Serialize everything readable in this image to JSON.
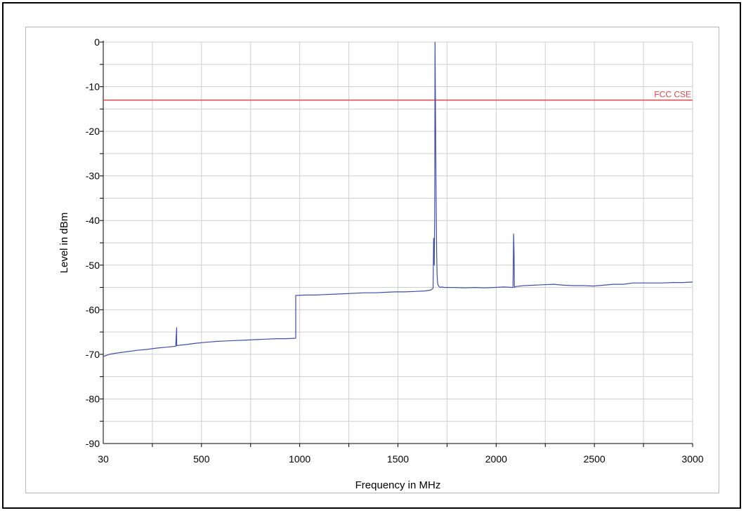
{
  "chart_data": {
    "type": "line",
    "title": "",
    "xlabel": "Frequency in MHz",
    "ylabel": "Level in dBm",
    "xlim": [
      30,
      3000
    ],
    "ylim": [
      -90,
      0
    ],
    "x_tick_labels": [
      "30",
      "500",
      "1000",
      "1500",
      "2000",
      "2500",
      "3000"
    ],
    "y_tick_labels": [
      "0",
      "-10",
      "-20",
      "-30",
      "-40",
      "-50",
      "-60",
      "-70",
      "-80",
      "-90"
    ],
    "grid": true,
    "limit_line": {
      "name": "FCC CSE",
      "value": -13,
      "color": "#e8434a"
    },
    "series": [
      {
        "color": "#3f4fa8",
        "x": [
          30,
          60,
          100,
          150,
          200,
          250,
          300,
          350,
          395,
          400,
          400,
          405,
          450,
          500,
          550,
          600,
          650,
          700,
          750,
          800,
          850,
          900,
          950,
          1000,
          1000,
          1050,
          1100,
          1150,
          1200,
          1250,
          1300,
          1350,
          1400,
          1450,
          1500,
          1550,
          1600,
          1650,
          1680,
          1692,
          1695,
          1698,
          1700,
          1702,
          1705,
          1707,
          1710,
          1712,
          1715,
          1718,
          1722,
          1728,
          1735,
          1750,
          1800,
          1850,
          1900,
          1950,
          2000,
          2050,
          2095,
          2098,
          2100,
          2102,
          2110,
          2150,
          2200,
          2250,
          2300,
          2350,
          2400,
          2450,
          2500,
          2550,
          2600,
          2650,
          2700,
          2750,
          2800,
          2850,
          2900,
          2950,
          3000
        ],
        "y": [
          -70.5,
          -70.0,
          -69.7,
          -69.4,
          -69.1,
          -68.9,
          -68.6,
          -68.4,
          -68.2,
          -64.0,
          -68.1,
          -68.0,
          -67.8,
          -67.5,
          -67.3,
          -67.1,
          -67.0,
          -66.9,
          -66.8,
          -66.7,
          -66.6,
          -66.5,
          -66.5,
          -66.4,
          -56.8,
          -56.7,
          -56.7,
          -56.6,
          -56.5,
          -56.4,
          -56.3,
          -56.2,
          -56.2,
          -56.1,
          -56.0,
          -56.0,
          -55.9,
          -55.8,
          -55.6,
          -55.2,
          -44.0,
          -50.0,
          -39.5,
          0.0,
          -20.5,
          -32.0,
          -47.0,
          -52.0,
          -54.0,
          -54.5,
          -54.8,
          -55.0,
          -54.9,
          -55.0,
          -55.0,
          -55.1,
          -55.0,
          -55.1,
          -55.0,
          -54.9,
          -55.0,
          -43.0,
          -47.0,
          -55.0,
          -54.8,
          -54.6,
          -54.5,
          -54.4,
          -54.3,
          -54.5,
          -54.6,
          -54.6,
          -54.7,
          -54.5,
          -54.3,
          -54.3,
          -54.0,
          -54.0,
          -54.0,
          -54.0,
          -53.9,
          -53.9,
          -53.8
        ]
      }
    ]
  }
}
